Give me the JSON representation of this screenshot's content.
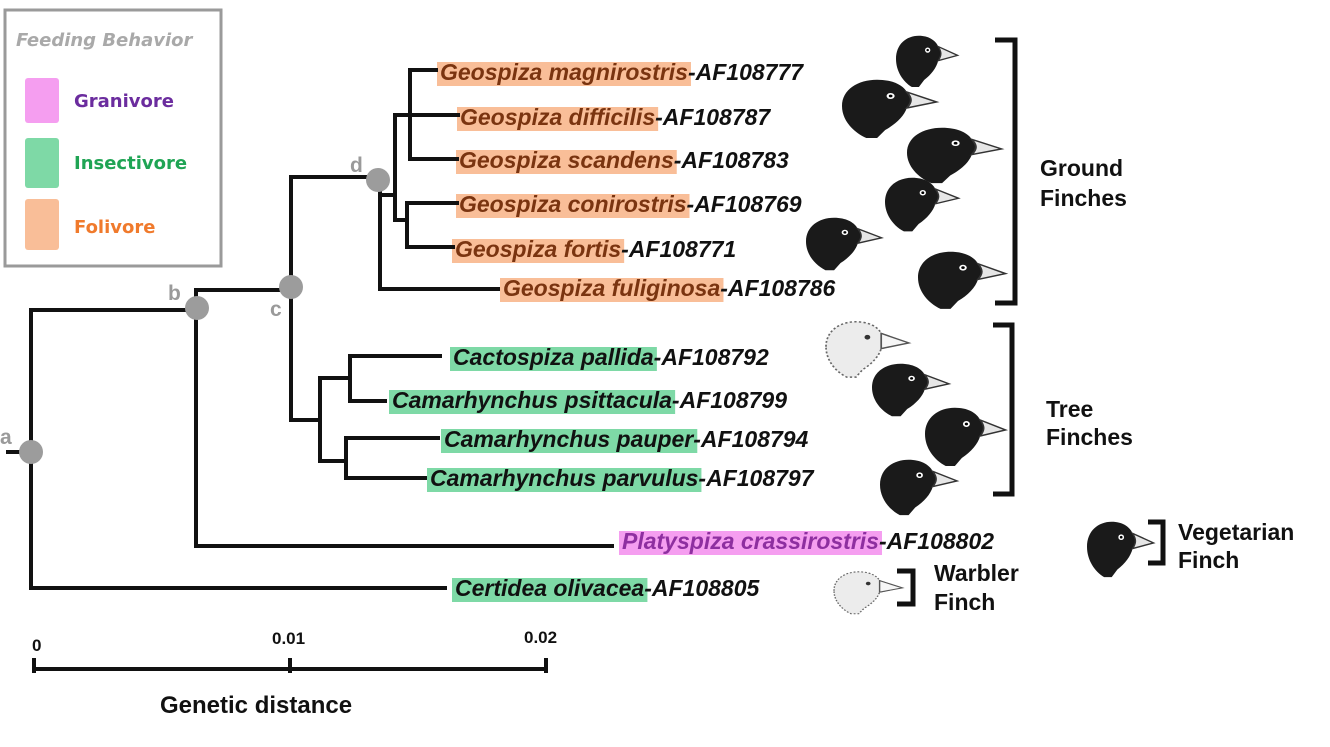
{
  "legend": {
    "title": "Feeding Behavior",
    "items": [
      {
        "label": "Granivore",
        "swatch": "#f59ef0",
        "text_color": "#6b2c9e"
      },
      {
        "label": "Insectivore",
        "swatch": "#7ed9a6",
        "text_color": "#1fa454"
      },
      {
        "label": "Folivore",
        "swatch": "#f9be98",
        "text_color": "#f07a2c"
      }
    ]
  },
  "nodes": [
    {
      "id": "a",
      "label": "a"
    },
    {
      "id": "b",
      "label": "b"
    },
    {
      "id": "c",
      "label": "c"
    },
    {
      "id": "d",
      "label": "d"
    }
  ],
  "taxa": [
    {
      "name": "Geospiza magnirostris",
      "code": "-AF108777",
      "diet": "folivore"
    },
    {
      "name": "Geospiza difficilis",
      "code": "-AF108787",
      "diet": "folivore"
    },
    {
      "name": "Geospiza scandens",
      "code": "-AF108783",
      "diet": "folivore"
    },
    {
      "name": "Geospiza conirostris",
      "code": "-AF108769",
      "diet": "folivore"
    },
    {
      "name": "Geospiza fortis",
      "code": "-AF108771",
      "diet": "folivore"
    },
    {
      "name": "Geospiza fuliginosa",
      "code": "-AF108786",
      "diet": "folivore"
    },
    {
      "name": "Cactospiza pallida",
      "code": "-AF108792",
      "diet": "insectivore"
    },
    {
      "name": "Camarhynchus psittacula",
      "code": "-AF108799",
      "diet": "insectivore"
    },
    {
      "name": "Camarhynchus pauper",
      "code": "-AF108794",
      "diet": "insectivore"
    },
    {
      "name": "Camarhynchus parvulus",
      "code": "-AF108797",
      "diet": "insectivore"
    },
    {
      "name": "Platyspiza crassirostris",
      "code": "-AF108802",
      "diet": "granivore"
    },
    {
      "name": "Certidea olivacea",
      "code": "-AF108805",
      "diet": "insectivore"
    }
  ],
  "groups": {
    "ground": {
      "line1": "Ground",
      "line2": "Finches"
    },
    "tree": {
      "line1": "Tree",
      "line2": "Finches"
    },
    "vegetarian": {
      "line1": "Vegetarian",
      "line2": "Finch"
    },
    "warbler": {
      "line1": "Warbler",
      "line2": "Finch"
    }
  },
  "scale": {
    "ticks": [
      "0",
      "0.01",
      "0.02"
    ],
    "title": "Genetic distance"
  },
  "colors": {
    "branch": "#111111",
    "node": "#9c9c9c",
    "taxon_text": "#111111",
    "granivore_text": "#8e2fa0",
    "folivore_text": "#7a3410"
  }
}
